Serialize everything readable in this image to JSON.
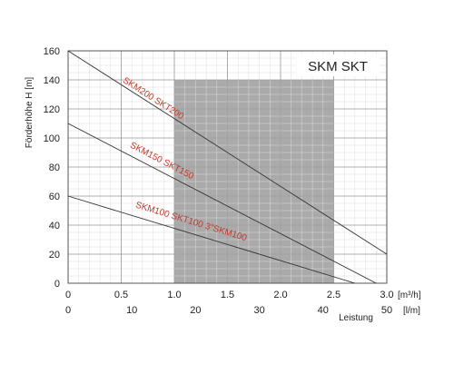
{
  "chart_data": {
    "type": "line",
    "title": "SKM SKT",
    "ylabel": "Förderhöhe  H [m]",
    "xlabel": "Leistung",
    "ylim": [
      0,
      160
    ],
    "y_ticks": [
      0,
      20,
      40,
      60,
      80,
      100,
      120,
      140,
      160
    ],
    "x_primary": {
      "unit": "[m³/h]",
      "range": [
        0,
        3.0
      ],
      "ticks": [
        0,
        0.5,
        1.0,
        1.5,
        2.0,
        2.5,
        3.0
      ],
      "tick_labels": [
        "0",
        "0.5",
        "1.0",
        "1.5",
        "2.0",
        "2.5",
        "3.0"
      ]
    },
    "x_secondary": {
      "unit": "[l/m]",
      "range": [
        0,
        50
      ],
      "ticks": [
        0,
        10,
        20,
        30,
        40,
        50
      ],
      "tick_labels": [
        "0",
        "10",
        "20",
        "30",
        "40",
        "50"
      ]
    },
    "grid": true,
    "shaded_region": {
      "x": [
        1.0,
        2.5
      ],
      "y": [
        0,
        140
      ]
    },
    "series": [
      {
        "name": "SKM200 SKT200",
        "color": "#c0392b",
        "x": [
          0,
          3.0
        ],
        "y": [
          160,
          20
        ]
      },
      {
        "name": "SKM150 SKT150",
        "color": "#c0392b",
        "x": [
          0,
          2.9
        ],
        "y": [
          110,
          0
        ]
      },
      {
        "name": "SKM100 SKT100   3\"SKM100",
        "color": "#c0392b",
        "x": [
          0,
          2.7
        ],
        "y": [
          60,
          0
        ]
      }
    ]
  }
}
